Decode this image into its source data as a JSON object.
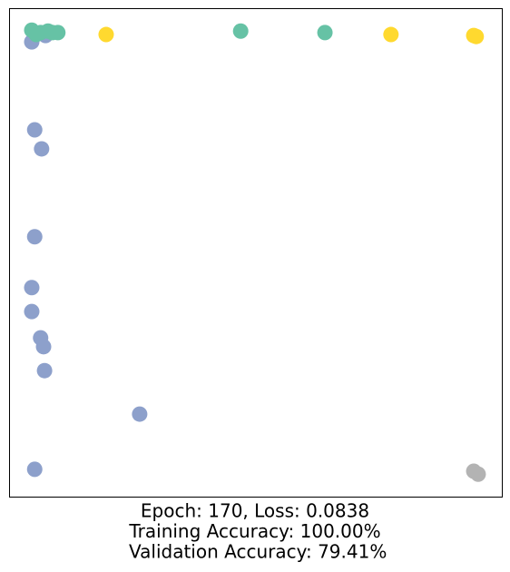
{
  "chart_data": {
    "type": "scatter",
    "xlim": [
      0,
      1
    ],
    "ylim": [
      0,
      1
    ],
    "grid": false,
    "xlabel": [
      "Epoch: 170, Loss: 0.0838",
      "Training Accuracy: 100.00%",
      " Validation Accuracy: 79.41%"
    ],
    "series": [
      {
        "color": "#8da0cb",
        "x": [
          0.046,
          0.074,
          0.052,
          0.066,
          0.052,
          0.046,
          0.046,
          0.064,
          0.07,
          0.072,
          0.265,
          0.052
        ],
        "values": [
          0.931,
          0.944,
          0.751,
          0.712,
          0.532,
          0.428,
          0.379,
          0.325,
          0.307,
          0.258,
          0.169,
          0.056
        ]
      },
      {
        "color": "#66c2a5",
        "x": [
          0.046,
          0.055,
          0.079,
          0.088,
          0.099,
          0.47,
          0.641,
          0.064
        ],
        "values": [
          0.955,
          0.946,
          0.953,
          0.95,
          0.95,
          0.953,
          0.95,
          0.95
        ]
      },
      {
        "color": "#ffd92f",
        "x": [
          0.197,
          0.775,
          0.943,
          0.948
        ],
        "values": [
          0.946,
          0.946,
          0.944,
          0.942
        ]
      },
      {
        "color": "#b3b3b3",
        "x": [
          0.943,
          0.952
        ],
        "values": [
          0.052,
          0.046
        ]
      }
    ]
  }
}
